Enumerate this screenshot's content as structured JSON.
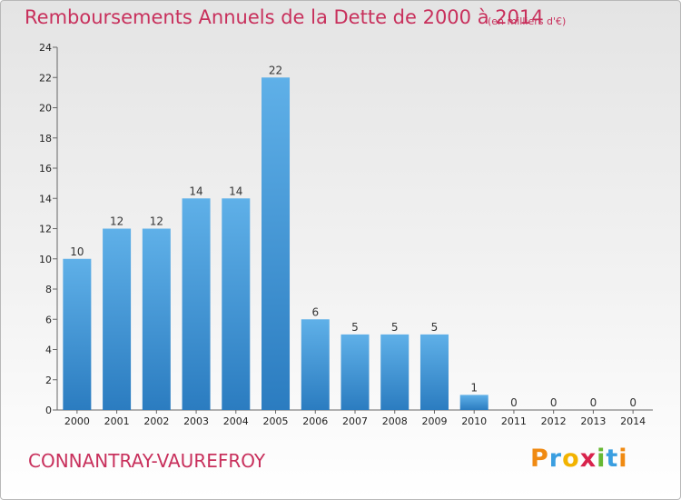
{
  "chart_data": {
    "type": "bar",
    "title": "Remboursements Annuels de la Dette de 2000 à 2014",
    "subtitle": "(en milliers d'€)",
    "categories": [
      "2000",
      "2001",
      "2002",
      "2003",
      "2004",
      "2005",
      "2006",
      "2007",
      "2008",
      "2009",
      "2010",
      "2011",
      "2012",
      "2013",
      "2014"
    ],
    "values": [
      10,
      12,
      12,
      14,
      14,
      22,
      6,
      5,
      5,
      5,
      1,
      0,
      0,
      0,
      0
    ],
    "ylim": [
      0,
      24
    ],
    "yticks": [
      0,
      2,
      4,
      6,
      8,
      10,
      12,
      14,
      16,
      18,
      20,
      22,
      24
    ],
    "xlabel": "",
    "ylabel": "",
    "grid": false,
    "colors": {
      "bar_top": "#5fb0e8",
      "bar_bottom": "#2b7cc0"
    }
  },
  "footer": {
    "city": "CONNANTRAY-VAUREFROY",
    "logo": {
      "p": "P",
      "r": "r",
      "o": "o",
      "x": "x",
      "i1": "i",
      "t": "t",
      "i2": "i"
    }
  }
}
